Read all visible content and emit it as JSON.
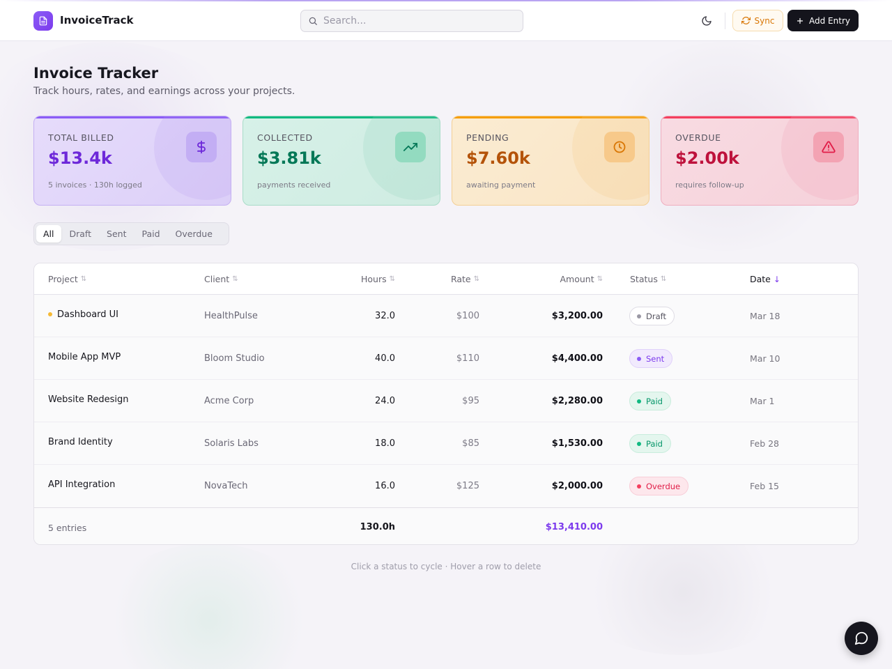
{
  "app": {
    "name": "InvoiceTrack"
  },
  "header": {
    "search_placeholder": "Search...",
    "sync_label": "Sync",
    "add_label": "Add Entry"
  },
  "page": {
    "title": "Invoice Tracker",
    "subtitle": "Track hours, rates, and earnings across your projects."
  },
  "stats": [
    {
      "label": "TOTAL BILLED",
      "value": "$13.4k",
      "note": "5 invoices · 130h logged",
      "icon": "dollar-icon",
      "color": "#6d28d9"
    },
    {
      "label": "COLLECTED",
      "value": "$3.81k",
      "note": "payments received",
      "icon": "trending-up-icon",
      "color": "#047857"
    },
    {
      "label": "PENDING",
      "value": "$7.60k",
      "note": "awaiting payment",
      "icon": "clock-icon",
      "color": "#b45309"
    },
    {
      "label": "OVERDUE",
      "value": "$2.00k",
      "note": "requires follow-up",
      "icon": "alert-triangle-icon",
      "color": "#be123c"
    }
  ],
  "filters": [
    "All",
    "Draft",
    "Sent",
    "Paid",
    "Overdue"
  ],
  "active_filter": "All",
  "table": {
    "columns": {
      "project": "Project",
      "client": "Client",
      "hours": "Hours",
      "rate": "Rate",
      "amount": "Amount",
      "status": "Status",
      "date": "Date"
    },
    "sorted_by": "Date",
    "rows": [
      {
        "project": "Dashboard UI",
        "client": "HealthPulse",
        "hours": "32.0",
        "rate": "$100",
        "amount": "$3,200.00",
        "status": "Draft",
        "date": "Mar 18",
        "unsaved": true
      },
      {
        "project": "Mobile App MVP",
        "client": "Bloom Studio",
        "hours": "40.0",
        "rate": "$110",
        "amount": "$4,400.00",
        "status": "Sent",
        "date": "Mar 10"
      },
      {
        "project": "Website Redesign",
        "client": "Acme Corp",
        "hours": "24.0",
        "rate": "$95",
        "amount": "$2,280.00",
        "status": "Paid",
        "date": "Mar 1"
      },
      {
        "project": "Brand Identity",
        "client": "Solaris Labs",
        "hours": "18.0",
        "rate": "$85",
        "amount": "$1,530.00",
        "status": "Paid",
        "date": "Feb 28"
      },
      {
        "project": "API Integration",
        "client": "NovaTech",
        "hours": "16.0",
        "rate": "$125",
        "amount": "$2,000.00",
        "status": "Overdue",
        "date": "Feb 15"
      }
    ],
    "footer": {
      "entries": "5 entries",
      "total_hours": "130.0h",
      "total_amount": "$13,410.00"
    }
  },
  "status_colors": {
    "Draft": "#6b7280",
    "Sent": "#7c3aed",
    "Paid": "#059669",
    "Overdue": "#e11d48"
  },
  "hint": "Click a status to cycle · Hover a row to delete"
}
